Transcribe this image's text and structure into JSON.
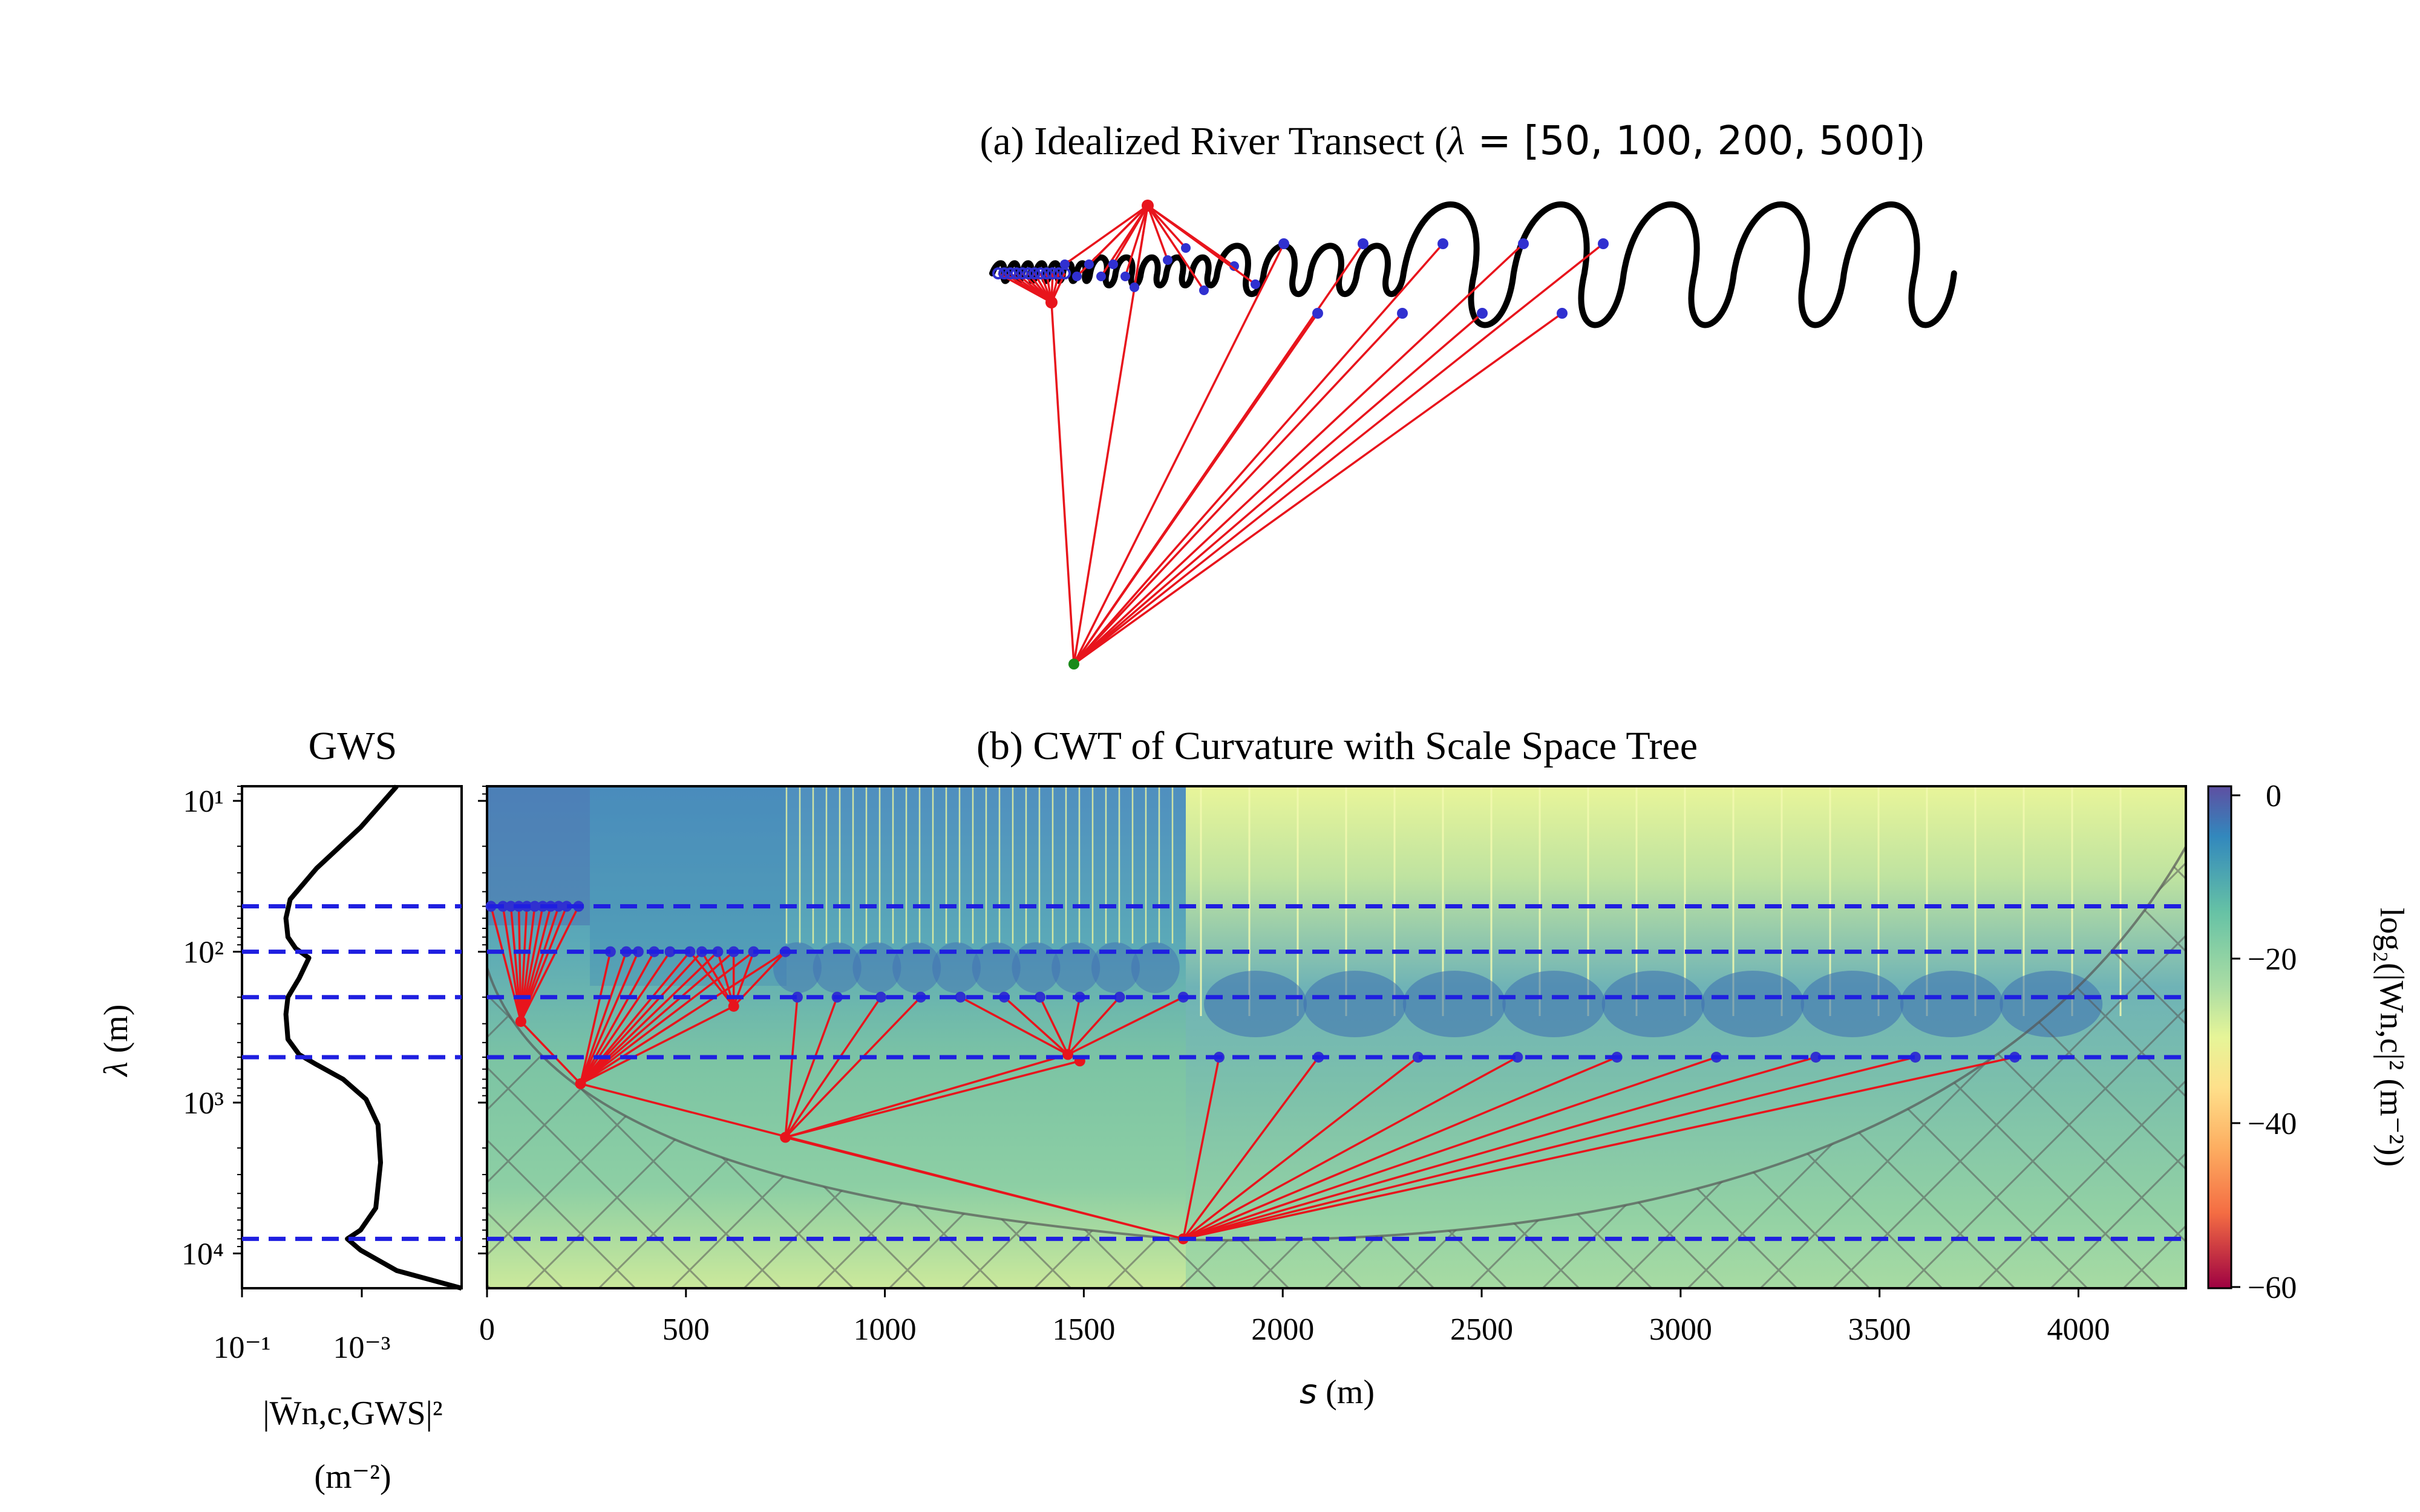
{
  "panel_a": {
    "title_prefix": "(a) Idealized River Transect (",
    "title_symbol": "λ",
    "title_eq": " = [50, 100, 200, 500]",
    "title_suffix": ")"
  },
  "gws": {
    "title": "GWS",
    "xlabel_line1": "|W̄n,c,GWS|²",
    "xlabel_line2": "(m⁻²)",
    "xticks": [
      "10⁻¹",
      "10⁻³"
    ]
  },
  "panel_b": {
    "title": "(b) CWT of Curvature with Scale Space Tree",
    "xlabel_symbol": "s",
    "xlabel_unit": " (m)",
    "ylabel_symbol": "λ",
    "ylabel_unit": " (m)",
    "xticks": [
      "0",
      "500",
      "1000",
      "1500",
      "2000",
      "2500",
      "3000",
      "3500",
      "4000"
    ],
    "yticks": [
      "10¹",
      "10²",
      "10³",
      "10⁴"
    ]
  },
  "colorbar": {
    "label": "log₂(|Wn,c|² (m⁻²))",
    "ticks": [
      "0",
      "−20",
      "−40",
      "−60"
    ]
  },
  "chart_data": [
    {
      "type": "line",
      "panel": "a",
      "title": "(a) Idealized River Transect (λ = [50, 100, 200, 500])",
      "description_series": "Idealized meandering river centerline composed of bends with wavelengths 50, 100, 200 and 500 m; scale-space tree links inflection nodes to a root.",
      "wavelengths": [
        50,
        100,
        200,
        500
      ]
    },
    {
      "type": "line",
      "panel": "GWS",
      "title": "GWS",
      "xlabel": "|W̄n,c,GWS|² (m⁻²)",
      "ylabel": "λ (m)",
      "xscale": "log",
      "yscale": "log",
      "xlim": [
        1.0,
        1e-05
      ],
      "ylim": [
        8,
        17000
      ],
      "series": [
        {
          "x": [
            0.0003,
            0.002,
            0.02,
            0.08,
            0.1,
            0.09,
            0.06,
            0.03,
            0.05,
            0.09,
            0.1,
            0.09,
            0.05,
            0.02,
            0.005,
            0.0015,
            0.0008,
            0.0007,
            0.0009,
            0.002,
            0.004,
            0.002,
            0.0003,
            1e-05
          ],
          "y": [
            8,
            15,
            28,
            45,
            60,
            80,
            95,
            110,
            150,
            200,
            260,
            380,
            480,
            560,
            700,
            950,
            1400,
            2500,
            5000,
            7000,
            8000,
            9500,
            13000,
            17000
          ]
        }
      ],
      "hlines": [
        50,
        100,
        200,
        500,
        8000
      ]
    },
    {
      "type": "heatmap",
      "panel": "b",
      "title": "(b) CWT of Curvature with Scale Space Tree",
      "xlabel": "s (m)",
      "ylabel": "λ (m)",
      "xlim": [
        0,
        4270
      ],
      "ylim": [
        8,
        17000
      ],
      "yscale": "log",
      "colorbar": {
        "label": "log₂(|Wn,c|² (m⁻²))",
        "range": [
          -60,
          0
        ],
        "ticks": [
          0,
          -20,
          -40,
          -60
        ]
      },
      "hlines": [
        50,
        100,
        200,
        500,
        8000
      ],
      "tree_root": {
        "s": 1750,
        "lambda": 8000
      },
      "tree_nodes": [
        {
          "s": 235,
          "lambda": 750
        },
        {
          "s": 750,
          "lambda": 1700
        },
        {
          "s": 85,
          "lambda": 290
        },
        {
          "s": 620,
          "lambda": 230
        },
        {
          "s": 1460,
          "lambda": 480
        },
        {
          "s": 1490,
          "lambda": 530
        }
      ],
      "leaf_nodes_lambda50": [
        10,
        40,
        60,
        80,
        100,
        120,
        140,
        160,
        180,
        200,
        230
      ],
      "leaf_nodes_lambda100": [
        310,
        350,
        380,
        420,
        460,
        510,
        540,
        580,
        620,
        670,
        750
      ],
      "leaf_nodes_lambda200": [
        780,
        880,
        990,
        1090,
        1190,
        1300,
        1390,
        1490,
        1590,
        1750
      ],
      "leaf_nodes_lambda500": [
        1840,
        2090,
        2340,
        2590,
        2840,
        3090,
        3340,
        3590,
        3840
      ]
    }
  ]
}
